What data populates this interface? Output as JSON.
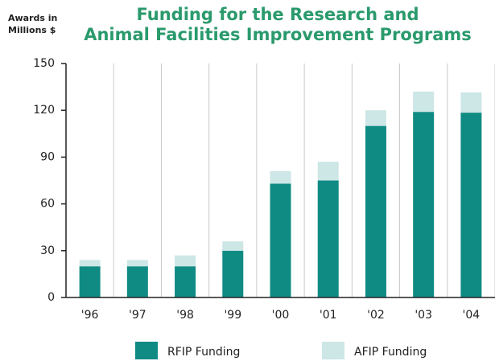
{
  "chart_data": {
    "type": "stacked_bar",
    "title": [
      "Funding for the Research and",
      "Animal Facilities Improvement Programs"
    ],
    "ylabel": [
      "Awards in",
      "Millions $"
    ],
    "categories": [
      "'96",
      "'97",
      "'98",
      "'99",
      "'00",
      "'01",
      "'02",
      "'03",
      "'04"
    ],
    "series": [
      {
        "name": "RFIP Funding",
        "color": "#0f8b84",
        "values": [
          20,
          20,
          20,
          30,
          73,
          75,
          110,
          119,
          118.5
        ]
      },
      {
        "name": "AFIP Funding",
        "color": "#cde6e6",
        "values": [
          4,
          4,
          7,
          6,
          8,
          12,
          10,
          13,
          13
        ]
      }
    ],
    "ylim": [
      0,
      150
    ],
    "yticks": [
      0,
      30,
      60,
      90,
      120,
      150
    ]
  }
}
